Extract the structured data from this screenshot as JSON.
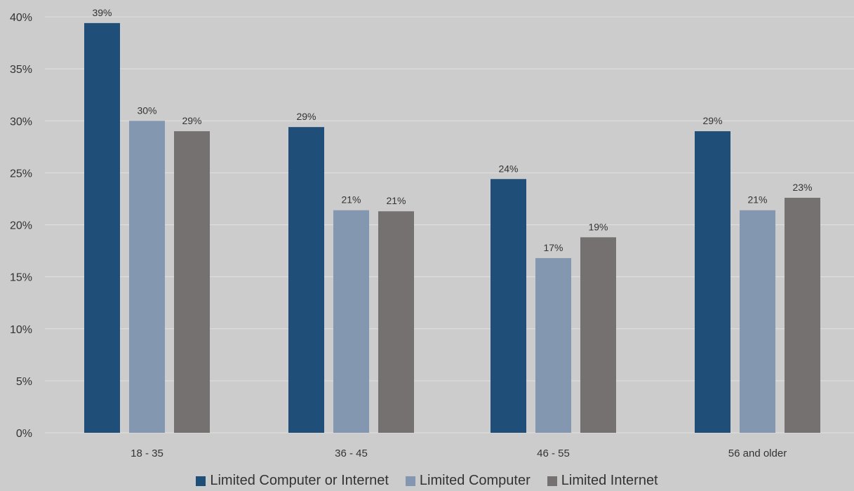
{
  "chart_data": {
    "type": "bar",
    "categories": [
      "18 - 35",
      "36 - 45",
      "46 - 55",
      "56 and older"
    ],
    "series": [
      {
        "name": "Limited Computer or Internet",
        "values": [
          39.4,
          29.4,
          24.4,
          29.0
        ],
        "labels": [
          "39%",
          "29%",
          "24%",
          "29%"
        ],
        "color": "#1f4e79"
      },
      {
        "name": "Limited Computer",
        "values": [
          30.0,
          21.4,
          16.8,
          21.4
        ],
        "labels": [
          "30%",
          "21%",
          "17%",
          "21%"
        ],
        "color": "#8497b0"
      },
      {
        "name": "Limited Internet",
        "values": [
          29.0,
          21.3,
          18.8,
          22.6
        ],
        "labels": [
          "29%",
          "21%",
          "19%",
          "23%"
        ],
        "color": "#767171"
      }
    ],
    "ylim": [
      0,
      40
    ],
    "yticks": [
      {
        "value": 0,
        "label": "0%"
      },
      {
        "value": 5,
        "label": "5%"
      },
      {
        "value": 10,
        "label": "10%"
      },
      {
        "value": 15,
        "label": "15%"
      },
      {
        "value": 20,
        "label": "20%"
      },
      {
        "value": 25,
        "label": "25%"
      },
      {
        "value": 30,
        "label": "30%"
      },
      {
        "value": 35,
        "label": "35%"
      },
      {
        "value": 40,
        "label": "40%"
      }
    ],
    "grid": true,
    "legend_position": "bottom",
    "colors": {
      "background": "#cccccc",
      "gridline": "#e0e0e0",
      "text": "#333333"
    }
  }
}
